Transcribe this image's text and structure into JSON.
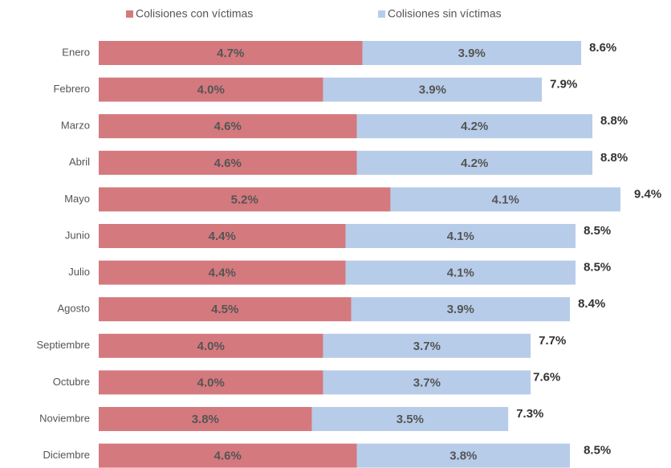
{
  "chart_data": {
    "type": "stacked-bar-horizontal",
    "categories": [
      "Enero",
      "Febrero",
      "Marzo",
      "Abril",
      "Mayo",
      "Junio",
      "Julio",
      "Agosto",
      "Septiembre",
      "Octubre",
      "Noviembre",
      "Diciembre"
    ],
    "series": [
      {
        "name": "Colisiones con víctimas",
        "color": "#d4797e",
        "values": [
          4.7,
          4.0,
          4.6,
          4.6,
          5.2,
          4.4,
          4.4,
          4.5,
          4.0,
          4.0,
          3.8,
          4.6
        ],
        "value_labels": [
          "4.7%",
          "4.0%",
          "4.6%",
          "4.6%",
          "5.2%",
          "4.4%",
          "4.4%",
          "4.5%",
          "4.0%",
          "4.0%",
          "3.8%",
          "4.6%"
        ]
      },
      {
        "name": "Colisiones sin víctimas",
        "color": "#b7cce8",
        "values": [
          3.9,
          3.9,
          4.2,
          4.2,
          4.1,
          4.1,
          4.1,
          3.9,
          3.7,
          3.7,
          3.5,
          3.8
        ],
        "value_labels": [
          "3.9%",
          "3.9%",
          "4.2%",
          "4.2%",
          "4.1%",
          "4.1%",
          "4.1%",
          "3.9%",
          "3.7%",
          "3.7%",
          "3.5%",
          "3.8%"
        ]
      }
    ],
    "totals": [
      8.6,
      7.9,
      8.8,
      8.8,
      9.4,
      8.5,
      8.5,
      8.4,
      7.7,
      7.6,
      7.3,
      8.5
    ],
    "total_labels": [
      "8.6%",
      "7.9%",
      "8.8%",
      "8.8%",
      "9.4%",
      "8.5%",
      "8.5%",
      "8.4%",
      "7.7%",
      "7.6%",
      "7.3%",
      "8.5%"
    ],
    "legend": "top"
  }
}
